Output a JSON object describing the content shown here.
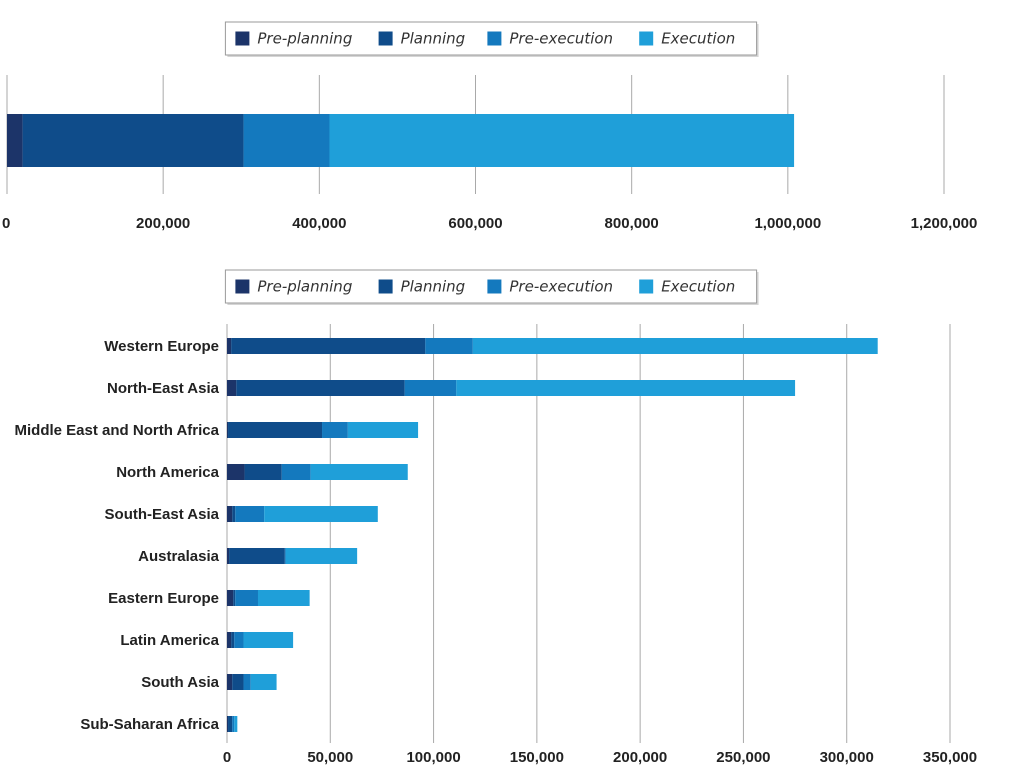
{
  "colors": {
    "pre_planning": "#1c3469",
    "planning": "#0f4c8a",
    "pre_execution": "#1479be",
    "execution": "#1f9fd9"
  },
  "chart_data": [
    {
      "type": "bar",
      "orientation": "horizontal",
      "stacked": true,
      "title": "",
      "xlabel": "",
      "ylabel": "",
      "xlim": [
        0,
        1200000
      ],
      "xticks": [
        0,
        200000,
        400000,
        600000,
        800000,
        1000000,
        1200000
      ],
      "xtick_labels": [
        "0",
        "200,000",
        "400,000",
        "600,000",
        "800,000",
        "1,000,000",
        "1,200,000"
      ],
      "grid": true,
      "legend_position": "top-center",
      "legend": [
        "Pre-planning",
        "Planning",
        "Pre-execution",
        "Execution"
      ],
      "categories": [
        ""
      ],
      "series": [
        {
          "name": "Pre-planning",
          "values": [
            20000
          ]
        },
        {
          "name": "Planning",
          "values": [
            283000
          ]
        },
        {
          "name": "Pre-execution",
          "values": [
            110000
          ]
        },
        {
          "name": "Execution",
          "values": [
            595000
          ]
        }
      ]
    },
    {
      "type": "bar",
      "orientation": "horizontal",
      "stacked": true,
      "title": "",
      "xlabel": "",
      "ylabel": "",
      "xlim": [
        0,
        350000
      ],
      "xticks": [
        0,
        50000,
        100000,
        150000,
        200000,
        250000,
        300000,
        350000
      ],
      "xtick_labels": [
        "0",
        "50,000",
        "100,000",
        "150,000",
        "200,000",
        "250,000",
        "300,000",
        "350,000"
      ],
      "grid": true,
      "legend_position": "top-center",
      "legend": [
        "Pre-planning",
        "Planning",
        "Pre-execution",
        "Execution"
      ],
      "categories": [
        "Western Europe",
        "North-East Asia",
        "Middle East and North Africa",
        "North America",
        "South-East Asia",
        "Australasia",
        "Eastern Europe",
        "Latin America",
        "South Asia",
        "Sub-Saharan Africa"
      ],
      "series": [
        {
          "name": "Pre-planning",
          "values": [
            2000,
            4500,
            500,
            8500,
            2500,
            1000,
            3000,
            2000,
            2500,
            500
          ]
        },
        {
          "name": "Planning",
          "values": [
            94000,
            81500,
            45500,
            18000,
            1500,
            27000,
            1000,
            1500,
            5500,
            2000
          ]
        },
        {
          "name": "Pre-execution",
          "values": [
            23000,
            25000,
            12500,
            14000,
            14000,
            500,
            11000,
            4500,
            3500,
            1000
          ]
        },
        {
          "name": "Execution",
          "values": [
            196000,
            164000,
            34000,
            47000,
            55000,
            34500,
            25000,
            24000,
            12500,
            1500
          ]
        }
      ]
    }
  ]
}
